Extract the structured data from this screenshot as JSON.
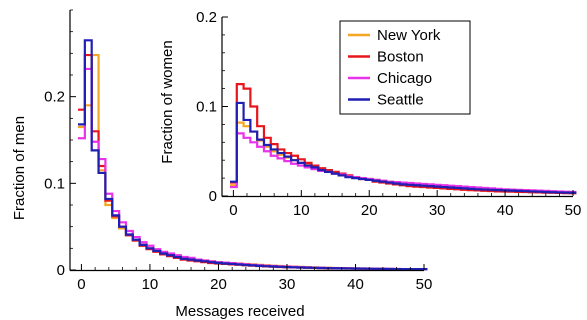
{
  "chart_data": [
    {
      "type": "line",
      "step": true,
      "panel": "main",
      "xlabel": "Messages received",
      "ylabel": "Fraction of men",
      "xlim": [
        -0.5,
        50
      ],
      "ylim": [
        0,
        0.3
      ],
      "xticks": [
        0,
        10,
        20,
        30,
        40,
        50
      ],
      "xtick_labels": [
        "0",
        "10",
        "20",
        "30",
        "40",
        "50"
      ],
      "yticks": [
        0,
        0.1,
        0.2
      ],
      "ytick_labels": [
        "0",
        "0.1",
        "0.2"
      ],
      "grid": false,
      "series": [
        {
          "name": "New York",
          "color": "#f5a623",
          "values": [
            0.165,
            0.19,
            0.248,
            0.115,
            0.075,
            0.06,
            0.048,
            0.04,
            0.034,
            0.029,
            0.025,
            0.022,
            0.02,
            0.018,
            0.016,
            0.014,
            0.013,
            0.012,
            0.011,
            0.01,
            0.009,
            0.0085,
            0.008,
            0.0075,
            0.007,
            0.0065,
            0.006,
            0.0055,
            0.005,
            0.0046,
            0.0042,
            0.0039,
            0.0036,
            0.0033,
            0.003,
            0.0028,
            0.0026,
            0.0024,
            0.0022,
            0.002,
            0.0018,
            0.0017,
            0.0016,
            0.0015,
            0.0014,
            0.0013,
            0.0012,
            0.0011,
            0.001,
            0.001,
            0.001
          ]
        },
        {
          "name": "Boston",
          "color": "#e8151b",
          "values": [
            0.185,
            0.248,
            0.16,
            0.12,
            0.08,
            0.062,
            0.05,
            0.04,
            0.034,
            0.028,
            0.024,
            0.021,
            0.018,
            0.016,
            0.014,
            0.012,
            0.011,
            0.01,
            0.009,
            0.008,
            0.0075,
            0.007,
            0.0065,
            0.006,
            0.0055,
            0.005,
            0.0046,
            0.0042,
            0.0038,
            0.0035,
            0.0032,
            0.003,
            0.0028,
            0.0026,
            0.0024,
            0.0022,
            0.002,
            0.0019,
            0.0018,
            0.0017,
            0.0016,
            0.0015,
            0.0014,
            0.0013,
            0.0012,
            0.0011,
            0.001,
            0.001,
            0.001,
            0.001,
            0.001
          ]
        },
        {
          "name": "Chicago",
          "color": "#e833e8",
          "values": [
            0.152,
            0.232,
            0.148,
            0.128,
            0.088,
            0.068,
            0.055,
            0.045,
            0.038,
            0.032,
            0.028,
            0.024,
            0.021,
            0.019,
            0.017,
            0.015,
            0.014,
            0.012,
            0.011,
            0.01,
            0.009,
            0.0085,
            0.008,
            0.0072,
            0.0066,
            0.006,
            0.0055,
            0.005,
            0.0046,
            0.0042,
            0.0039,
            0.0036,
            0.0033,
            0.003,
            0.0028,
            0.0026,
            0.0024,
            0.0022,
            0.002,
            0.0019,
            0.0018,
            0.0017,
            0.0016,
            0.0015,
            0.0014,
            0.0013,
            0.0012,
            0.0011,
            0.001,
            0.001,
            0.001
          ]
        },
        {
          "name": "Seattle",
          "color": "#1f1fb4",
          "values": [
            0.168,
            0.265,
            0.138,
            0.112,
            0.082,
            0.063,
            0.05,
            0.041,
            0.035,
            0.029,
            0.025,
            0.022,
            0.019,
            0.017,
            0.015,
            0.013,
            0.012,
            0.011,
            0.01,
            0.009,
            0.0082,
            0.0075,
            0.007,
            0.0064,
            0.0058,
            0.0053,
            0.0048,
            0.0044,
            0.004,
            0.0037,
            0.0034,
            0.0031,
            0.0029,
            0.0027,
            0.0025,
            0.0023,
            0.0021,
            0.002,
            0.0019,
            0.0018,
            0.0017,
            0.0016,
            0.0015,
            0.0014,
            0.0013,
            0.0012,
            0.0011,
            0.001,
            0.001,
            0.001,
            0.001
          ]
        }
      ]
    },
    {
      "type": "line",
      "step": true,
      "panel": "inset",
      "xlabel": "",
      "ylabel": "Fraction of women",
      "xlim": [
        -0.5,
        50
      ],
      "ylim": [
        0,
        0.2
      ],
      "xticks": [
        0,
        10,
        20,
        30,
        40,
        50
      ],
      "xtick_labels": [
        "0",
        "10",
        "20",
        "30",
        "40",
        "50"
      ],
      "yticks": [
        0,
        0.1,
        0.2
      ],
      "ytick_labels": [
        "0",
        "0.1",
        "0.2"
      ],
      "grid": false,
      "legend": "top-center",
      "series": [
        {
          "name": "New York",
          "color": "#f5a623",
          "values": [
            0.012,
            0.082,
            0.078,
            0.072,
            0.062,
            0.055,
            0.05,
            0.046,
            0.043,
            0.04,
            0.037,
            0.035,
            0.032,
            0.03,
            0.028,
            0.026,
            0.024,
            0.022,
            0.021,
            0.02,
            0.019,
            0.018,
            0.017,
            0.016,
            0.015,
            0.014,
            0.013,
            0.0125,
            0.012,
            0.0115,
            0.011,
            0.0105,
            0.01,
            0.0095,
            0.009,
            0.0085,
            0.008,
            0.0075,
            0.007,
            0.0065,
            0.006,
            0.0058,
            0.0056,
            0.0054,
            0.0052,
            0.005,
            0.0048,
            0.0046,
            0.0044,
            0.0042,
            0.004
          ]
        },
        {
          "name": "Boston",
          "color": "#e8151b",
          "values": [
            0.015,
            0.125,
            0.12,
            0.1,
            0.078,
            0.065,
            0.058,
            0.052,
            0.048,
            0.045,
            0.041,
            0.037,
            0.034,
            0.031,
            0.029,
            0.027,
            0.025,
            0.023,
            0.021,
            0.019,
            0.018,
            0.016,
            0.015,
            0.014,
            0.013,
            0.012,
            0.011,
            0.0105,
            0.01,
            0.0095,
            0.009,
            0.0085,
            0.008,
            0.0075,
            0.007,
            0.0066,
            0.0062,
            0.0058,
            0.0055,
            0.0052,
            0.005,
            0.0048,
            0.0046,
            0.0044,
            0.0042,
            0.004,
            0.0038,
            0.0036,
            0.0034,
            0.0032,
            0.003
          ]
        },
        {
          "name": "Chicago",
          "color": "#e833e8",
          "values": [
            0.01,
            0.07,
            0.065,
            0.06,
            0.055,
            0.05,
            0.045,
            0.042,
            0.039,
            0.036,
            0.034,
            0.032,
            0.03,
            0.028,
            0.027,
            0.025,
            0.024,
            0.022,
            0.021,
            0.02,
            0.019,
            0.018,
            0.017,
            0.016,
            0.0155,
            0.015,
            0.0145,
            0.014,
            0.0135,
            0.013,
            0.0125,
            0.012,
            0.0115,
            0.011,
            0.0105,
            0.01,
            0.0095,
            0.009,
            0.0085,
            0.008,
            0.0075,
            0.0072,
            0.0069,
            0.0066,
            0.0063,
            0.006,
            0.0057,
            0.0054,
            0.0051,
            0.0048,
            0.0045
          ]
        },
        {
          "name": "Seattle",
          "color": "#1f1fb4",
          "values": [
            0.016,
            0.104,
            0.085,
            0.072,
            0.063,
            0.057,
            0.052,
            0.048,
            0.044,
            0.04,
            0.037,
            0.034,
            0.032,
            0.029,
            0.027,
            0.025,
            0.023,
            0.021,
            0.02,
            0.019,
            0.018,
            0.017,
            0.016,
            0.015,
            0.014,
            0.013,
            0.0125,
            0.012,
            0.0115,
            0.011,
            0.0105,
            0.01,
            0.0095,
            0.009,
            0.0085,
            0.008,
            0.0075,
            0.0072,
            0.0069,
            0.0066,
            0.0063,
            0.006,
            0.0057,
            0.0054,
            0.0051,
            0.0048,
            0.0045,
            0.0042,
            0.004,
            0.0038,
            0.0036
          ]
        }
      ]
    }
  ]
}
